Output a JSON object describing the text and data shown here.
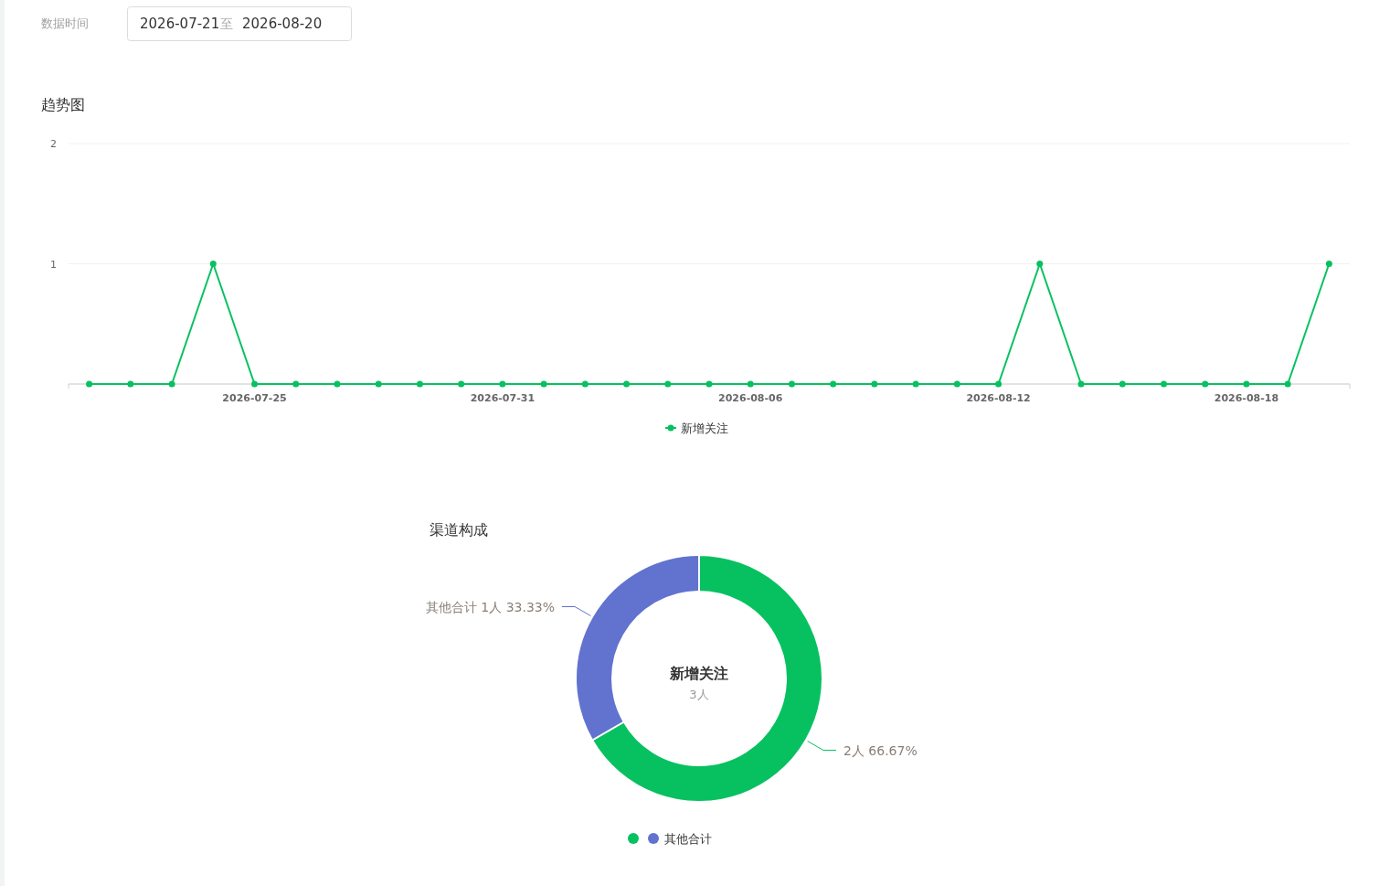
{
  "chart_data": [
    {
      "type": "line",
      "title": "趋势图",
      "annotations": [
        "数据时间",
        "2026-07-21",
        "至",
        "2026-08-20"
      ],
      "categories": [
        null,
        null,
        null,
        null,
        "2026-07-25",
        null,
        null,
        null,
        null,
        null,
        "2026-07-31",
        null,
        null,
        null,
        null,
        null,
        "2026-08-06",
        null,
        null,
        null,
        null,
        null,
        "2026-08-12",
        null,
        null,
        null,
        null,
        null,
        "2026-08-18",
        null,
        null
      ],
      "series": [
        {
          "name": "新增关注",
          "color": "#07c160",
          "values": [
            0,
            0,
            0,
            1,
            0,
            0,
            0,
            0,
            0,
            0,
            0,
            0,
            0,
            0,
            0,
            0,
            0,
            0,
            0,
            0,
            0,
            0,
            0,
            1,
            0,
            0,
            0,
            0,
            0,
            0,
            1
          ]
        }
      ],
      "ylim": [
        0,
        2
      ],
      "yticks": [
        {
          "value": 0,
          "label": null
        },
        1,
        2
      ],
      "grid": "y",
      "legend": "bottom",
      "marker": "circle",
      "line_style": "solid"
    },
    {
      "type": "donut",
      "title": "渠道构成",
      "annotations": [
        "新增关注",
        "3人"
      ],
      "categories": [
        null,
        "其他合计"
      ],
      "values": [
        2,
        1
      ],
      "colors": [
        "#07c160",
        "#6173cf"
      ],
      "value_labels": [
        "2人 66.67%",
        "1人 33.33%"
      ],
      "legend": "bottom"
    }
  ]
}
